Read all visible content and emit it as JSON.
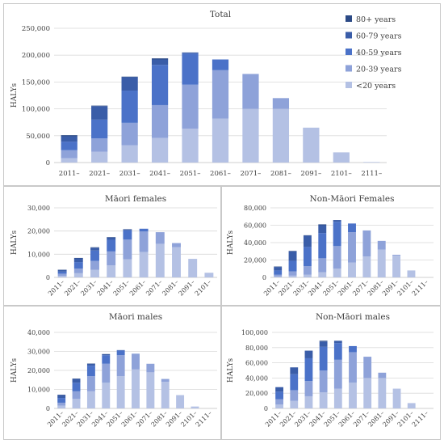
{
  "chart_data": [
    {
      "type": "bar",
      "stacked": true,
      "title": "Total",
      "ylabel": "HALYs",
      "ylim": [
        0,
        250000
      ],
      "yticks": [
        0,
        50000,
        100000,
        150000,
        200000,
        250000
      ],
      "ytick_labels": [
        "0",
        "50,000",
        "100,000",
        "150,000",
        "200,000",
        "250,000"
      ],
      "grid": true,
      "legend_position": "top-right",
      "categories": [
        "2011–",
        "2021–",
        "2031–",
        "2041–",
        "2051–",
        "2061–",
        "2071–",
        "2081–",
        "2091–",
        "2101–",
        "2111–"
      ],
      "series": [
        {
          "name": "<20 years",
          "values": [
            8000,
            20000,
            32000,
            46000,
            63000,
            82000,
            100000,
            100000,
            65000,
            19000,
            1000
          ]
        },
        {
          "name": "20-39 years",
          "values": [
            15000,
            25000,
            42000,
            61000,
            82000,
            90000,
            65000,
            20000,
            0,
            0,
            0
          ]
        },
        {
          "name": "40-59 years",
          "values": [
            16000,
            35000,
            60000,
            75000,
            58000,
            20000,
            0,
            0,
            0,
            0,
            0
          ]
        },
        {
          "name": "60-79 years",
          "values": [
            10000,
            25000,
            25000,
            10000,
            2000,
            0,
            0,
            0,
            0,
            0,
            0
          ]
        },
        {
          "name": "80+ years",
          "values": [
            2000,
            1000,
            1000,
            2000,
            0,
            0,
            0,
            0,
            0,
            0,
            0
          ]
        }
      ]
    },
    {
      "type": "bar",
      "stacked": true,
      "title": "Māori females",
      "ylabel": "HALYs",
      "ylim": [
        0,
        30000
      ],
      "yticks": [
        0,
        10000,
        20000,
        30000
      ],
      "ytick_labels": [
        "0",
        "10,000",
        "20,000",
        "30,000"
      ],
      "grid": true,
      "categories": [
        "2011–",
        "2021–",
        "2031–",
        "2041–",
        "2051–",
        "2061–",
        "2071–",
        "2081–",
        "2091–",
        "2101–"
      ],
      "series": [
        {
          "name": "<20 years",
          "values": [
            700,
            1800,
            3300,
            5200,
            7800,
            11000,
            14500,
            13000,
            8000,
            2000
          ]
        },
        {
          "name": "20-39 years",
          "values": [
            900,
            2000,
            3800,
            6000,
            8500,
            8800,
            5000,
            1800,
            0,
            0
          ]
        },
        {
          "name": "40-59 years",
          "values": [
            900,
            2800,
            4500,
            5000,
            4000,
            1200,
            0,
            0,
            0,
            0
          ]
        },
        {
          "name": "60-79 years",
          "values": [
            700,
            1600,
            1200,
            1000,
            400,
            0,
            0,
            0,
            0,
            0
          ]
        },
        {
          "name": "80+ years",
          "values": [
            100,
            200,
            200,
            200,
            100,
            0,
            0,
            0,
            0,
            0
          ]
        }
      ]
    },
    {
      "type": "bar",
      "stacked": true,
      "title": "Non-Māori Females",
      "ylabel": "HALYs",
      "ylim": [
        0,
        80000
      ],
      "yticks": [
        0,
        20000,
        40000,
        60000,
        80000
      ],
      "ytick_labels": [
        "0",
        "20,000",
        "40,000",
        "60,000",
        "80,000"
      ],
      "grid": true,
      "categories": [
        "2011–",
        "2021–",
        "2031–",
        "2041–",
        "2051–",
        "2061–",
        "2071–",
        "2081–",
        "2091–",
        "2101–",
        "2111–"
      ],
      "series": [
        {
          "name": "<20 years",
          "values": [
            1000,
            2000,
            3000,
            6000,
            10000,
            17000,
            24000,
            32000,
            25000,
            8000,
            0
          ]
        },
        {
          "name": "20-39 years",
          "values": [
            2000,
            5000,
            10000,
            16000,
            26000,
            35000,
            30000,
            10000,
            1000,
            0,
            0
          ]
        },
        {
          "name": "40-59 years",
          "values": [
            5000,
            12000,
            22000,
            29000,
            28000,
            10000,
            0,
            0,
            0,
            0,
            0
          ]
        },
        {
          "name": "60-79 years",
          "values": [
            4000,
            11000,
            13000,
            9000,
            2000,
            0,
            0,
            0,
            0,
            0,
            0
          ]
        },
        {
          "name": "80+ years",
          "values": [
            500,
            500,
            500,
            1000,
            0,
            0,
            0,
            0,
            0,
            0,
            0
          ]
        }
      ]
    },
    {
      "type": "bar",
      "stacked": true,
      "title": "Māori males",
      "ylabel": "HALYs",
      "ylim": [
        0,
        40000
      ],
      "yticks": [
        0,
        10000,
        20000,
        30000,
        40000
      ],
      "ytick_labels": [
        "0",
        "10,000",
        "20,000",
        "30,000",
        "40,000"
      ],
      "grid": true,
      "categories": [
        "2011–",
        "2021–",
        "2031–",
        "2041–",
        "2051–",
        "2061–",
        "2071–",
        "2081–",
        "2091–",
        "2101–",
        "2111–"
      ],
      "series": [
        {
          "name": "<20 years",
          "values": [
            1500,
            5000,
            9000,
            13500,
            17000,
            20500,
            19000,
            14000,
            7000,
            1000,
            0
          ]
        },
        {
          "name": "20-39 years",
          "values": [
            1500,
            4000,
            8000,
            10000,
            11000,
            8000,
            4500,
            1500,
            0,
            0,
            0
          ]
        },
        {
          "name": "40-59 years",
          "values": [
            2500,
            4500,
            5500,
            4500,
            2500,
            200,
            0,
            0,
            0,
            0,
            0
          ]
        },
        {
          "name": "60-79 years",
          "values": [
            1500,
            2000,
            1000,
            500,
            200,
            0,
            0,
            0,
            0,
            0,
            0
          ]
        },
        {
          "name": "80+ years",
          "values": [
            200,
            200,
            100,
            100,
            0,
            0,
            0,
            0,
            0,
            0,
            0
          ]
        }
      ]
    },
    {
      "type": "bar",
      "stacked": true,
      "title": "Non-Māori males",
      "ylabel": "HALYs",
      "ylim": [
        0,
        100000
      ],
      "yticks": [
        0,
        20000,
        40000,
        60000,
        80000,
        100000
      ],
      "ytick_labels": [
        "0",
        "20,000",
        "40,000",
        "60,000",
        "80,000",
        "100,000"
      ],
      "grid": true,
      "categories": [
        "2011–",
        "2021–",
        "2031–",
        "2041–",
        "2051–",
        "2061–",
        "2071–",
        "2081–",
        "2091–",
        "2101–",
        "2111–"
      ],
      "series": [
        {
          "name": "<20 years",
          "values": [
            5000,
            10000,
            16000,
            21000,
            26000,
            34000,
            40000,
            40000,
            26000,
            7000,
            0
          ]
        },
        {
          "name": "20-39 years",
          "values": [
            7000,
            14000,
            20000,
            29000,
            38000,
            40000,
            28000,
            7000,
            0,
            0,
            0
          ]
        },
        {
          "name": "40-59 years",
          "values": [
            10000,
            21000,
            30000,
            31000,
            22000,
            8000,
            0,
            0,
            0,
            0,
            0
          ]
        },
        {
          "name": "60-79 years",
          "values": [
            6000,
            9000,
            10000,
            7000,
            3000,
            0,
            0,
            0,
            0,
            0,
            0
          ]
        },
        {
          "name": "80+ years",
          "values": [
            0,
            0,
            0,
            1000,
            0,
            0,
            0,
            0,
            0,
            0,
            0
          ]
        }
      ]
    }
  ],
  "colors": {
    "<20 years": "#b4c1e4",
    "20-39 years": "#8ea2d9",
    "40-59 years": "#4b72c8",
    "60-79 years": "#3a5da8",
    "80+ years": "#2c4a86",
    "grid": "#d9d9d9",
    "axis": "#bfbfbf",
    "text": "#404040"
  }
}
